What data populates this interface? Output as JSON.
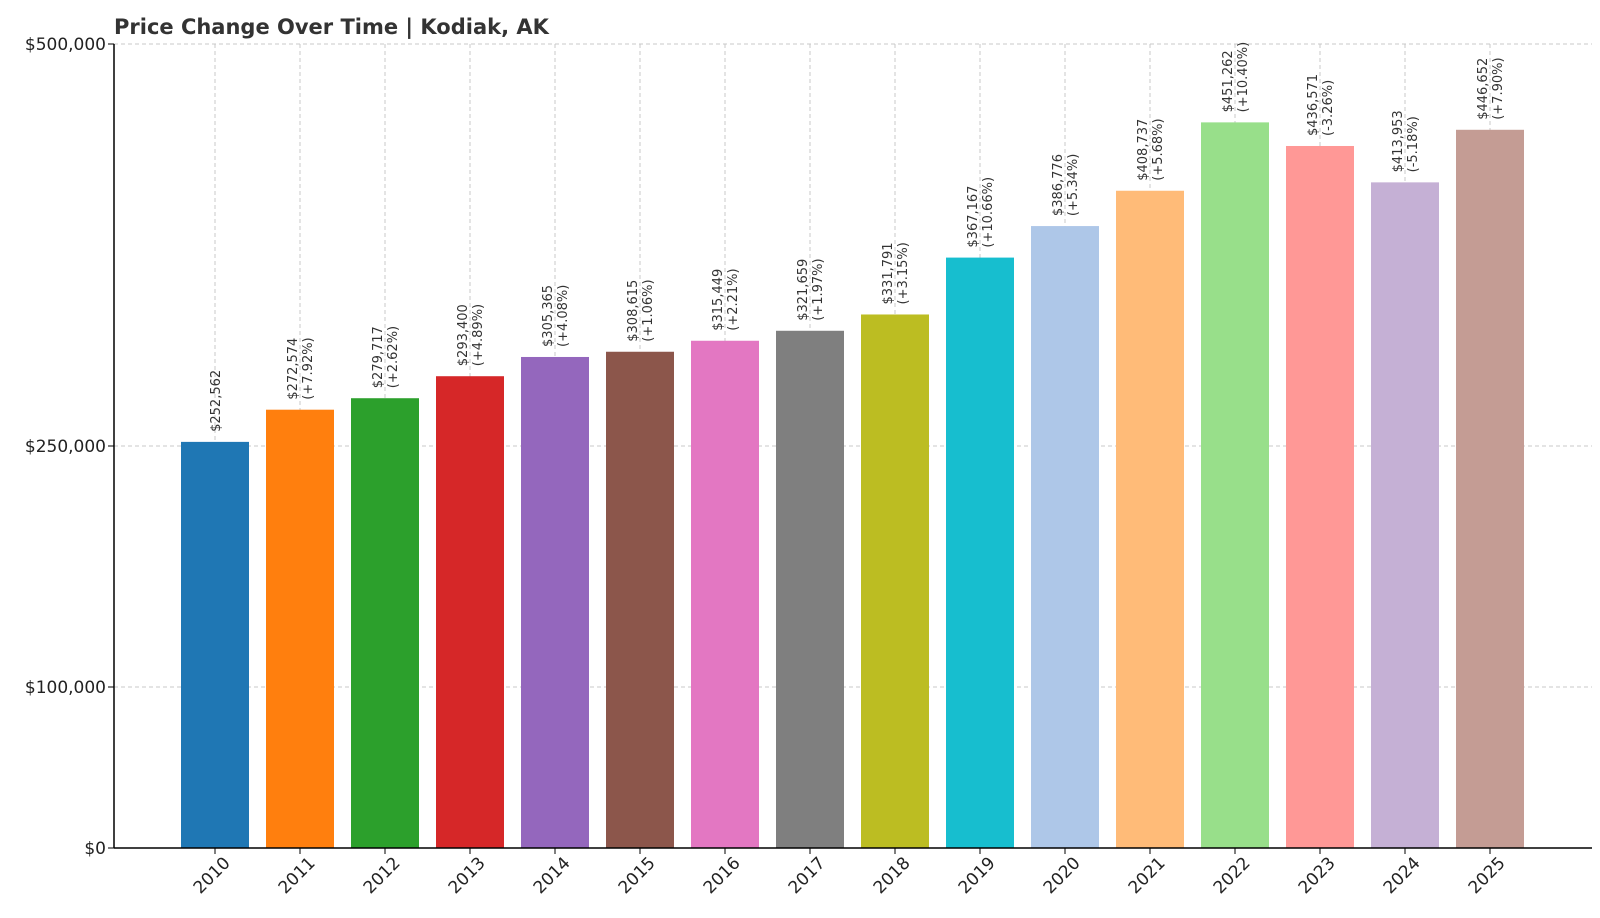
{
  "chart_data": {
    "type": "bar",
    "title": "Price Change Over Time | Kodiak, AK",
    "xlabel": "",
    "ylabel": "",
    "ylim": [
      0,
      500000
    ],
    "y_ticks": [
      {
        "value": 0,
        "label": "$0"
      },
      {
        "value": 100000,
        "label": "$100,000"
      },
      {
        "value": 250000,
        "label": "$250,000"
      },
      {
        "value": 500000,
        "label": "$500,000"
      }
    ],
    "grid": true,
    "categories": [
      "2010",
      "2011",
      "2012",
      "2013",
      "2014",
      "2015",
      "2016",
      "2017",
      "2018",
      "2019",
      "2020",
      "2021",
      "2022",
      "2023",
      "2024",
      "2025"
    ],
    "values": [
      252562,
      272574,
      279717,
      293400,
      305365,
      308615,
      315449,
      321659,
      331791,
      367167,
      386776,
      408737,
      451262,
      436571,
      413953,
      446652
    ],
    "value_labels": [
      "$252,562",
      "$272,574",
      "$279,717",
      "$293,400",
      "$305,365",
      "$308,615",
      "$315,449",
      "$321,659",
      "$331,791",
      "$367,167",
      "$386,776",
      "$408,737",
      "$451,262",
      "$436,571",
      "$413,953",
      "$446,652"
    ],
    "change_labels": [
      "",
      "(+7.92%)",
      "(+2.62%)",
      "(+4.89%)",
      "(+4.08%)",
      "(+1.06%)",
      "(+2.21%)",
      "(+1.97%)",
      "(+3.15%)",
      "(+10.66%)",
      "(+5.34%)",
      "(+5.68%)",
      "(+10.40%)",
      "(-3.26%)",
      "(-5.18%)",
      "(+7.90%)"
    ],
    "colors": [
      "#1f77b4",
      "#ff7f0e",
      "#2ca02c",
      "#d62728",
      "#9467bd",
      "#8c564b",
      "#e377c2",
      "#7f7f7f",
      "#bcbd22",
      "#17becf",
      "#aec7e8",
      "#ffbb78",
      "#98df8a",
      "#ff9896",
      "#c5b0d5",
      "#c49c94"
    ]
  }
}
